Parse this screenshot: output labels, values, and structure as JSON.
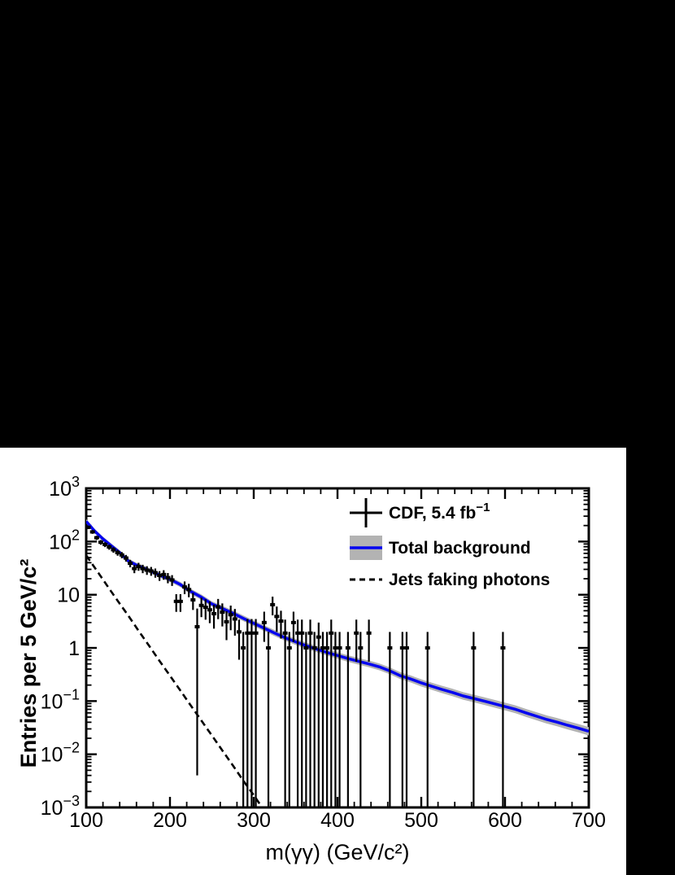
{
  "chart_data": {
    "type": "scatter",
    "title": "",
    "xlabel": "m(γγ) (GeV/c²)",
    "ylabel": "Entries per 5 GeV/c²",
    "xlim": [
      100,
      700
    ],
    "ylim": [
      0.001,
      1000
    ],
    "y_scale": "log",
    "grid": false,
    "legend_position": "top-right-inside",
    "x_major_ticks": [
      100,
      200,
      300,
      400,
      500,
      600,
      700
    ],
    "x_tick_labels": [
      "100",
      "200",
      "300",
      "400",
      "500",
      "600",
      "700"
    ],
    "x_minor_step": 20,
    "y_ticks": [
      {
        "value": 1000,
        "base": "10",
        "exp": "3"
      },
      {
        "value": 100,
        "base": "10",
        "exp": "2"
      },
      {
        "value": 10,
        "base": "10",
        "exp": ""
      },
      {
        "value": 1,
        "base": "1",
        "exp": ""
      },
      {
        "value": 0.1,
        "base": "10",
        "exp": "−1"
      },
      {
        "value": 0.01,
        "base": "10",
        "exp": "−2"
      },
      {
        "value": 0.001,
        "base": "10",
        "exp": "−3"
      }
    ],
    "colors": {
      "data_points": "#000000",
      "background_line": "#0505f0",
      "uncertainty_band": "#b3b3b3",
      "jets_line": "#000000",
      "figure_background": "#ffffff",
      "page_background": "#000000"
    },
    "legend": [
      {
        "label": "CDF, 5.4 fb",
        "sup": "−1",
        "marker": "data-point-cross"
      },
      {
        "label": "Total background",
        "sup": "",
        "marker": "blue-line-on-gray-band"
      },
      {
        "label": "Jets faking photons",
        "sup": "",
        "marker": "black-dashed-line"
      }
    ],
    "series": [
      {
        "name": "CDF data",
        "type": "points_with_errors",
        "note": "entries per 5 GeV/c^2 bin; [mass, value, err_low_abs, err_high_abs]; missing err => sqrt(value); err_low 0.001 => bar to bottom of frame",
        "points": [
          [
            102.5,
            185
          ],
          [
            107.5,
            152
          ],
          [
            112.5,
            118
          ],
          [
            117.5,
            97
          ],
          [
            122.5,
            88
          ],
          [
            127.5,
            79
          ],
          [
            132.5,
            70
          ],
          [
            137.5,
            62
          ],
          [
            142.5,
            56
          ],
          [
            147.5,
            49
          ],
          [
            152.5,
            39
          ],
          [
            157.5,
            31
          ],
          [
            162.5,
            34
          ],
          [
            167.5,
            31
          ],
          [
            172.5,
            29
          ],
          [
            177.5,
            28
          ],
          [
            182.5,
            26
          ],
          [
            187.5,
            23
          ],
          [
            192.5,
            24
          ],
          [
            197.5,
            21
          ],
          [
            202.5,
            19
          ],
          [
            207.5,
            7.5
          ],
          [
            212.5,
            7.5
          ],
          [
            217.5,
            14
          ],
          [
            222.5,
            12.5
          ],
          [
            227.5,
            8
          ],
          [
            232.5,
            2.5,
            0.004,
            5.5
          ],
          [
            237.5,
            6.3
          ],
          [
            242.5,
            5.8
          ],
          [
            247.5,
            5.2
          ],
          [
            252.5,
            4.4
          ],
          [
            257.5,
            5.9
          ],
          [
            262.5,
            4.7
          ],
          [
            267.5,
            3.1,
            1.4,
            4.9
          ],
          [
            272.5,
            4.2
          ],
          [
            277.5,
            3.5,
            1.7,
            5.4
          ],
          [
            282.5,
            2.0,
            0.6,
            3.4
          ],
          [
            287.5,
            1.0,
            0.001,
            2.0
          ],
          [
            292.5,
            1.9,
            0.001,
            3.5
          ],
          [
            297.5,
            1.9,
            0.001,
            3.5
          ],
          [
            302.5,
            1.9,
            0.001,
            3.5
          ],
          [
            312.5,
            3.0,
            1.3,
            4.8
          ],
          [
            317.5,
            1.0,
            0.001,
            2.0
          ],
          [
            322.5,
            6.5,
            4.1,
            9.2
          ],
          [
            327.5,
            3.9,
            2.0,
            6.0
          ],
          [
            332.5,
            3.2,
            1.5,
            5.0
          ],
          [
            337.5,
            1.9,
            0.001,
            3.4
          ],
          [
            342.5,
            1.0,
            0.001,
            2.0
          ],
          [
            347.5,
            3.0,
            1.3,
            4.8
          ],
          [
            352.5,
            1.9,
            0.001,
            3.4
          ],
          [
            357.5,
            1.9,
            0.001,
            3.4
          ],
          [
            362.5,
            1.0,
            0.001,
            2.0
          ],
          [
            367.5,
            1.9,
            0.001,
            3.4
          ],
          [
            372.5,
            1.0,
            0.001,
            2.0
          ],
          [
            377.5,
            1.6,
            0.001,
            3.0
          ],
          [
            382.5,
            1.0,
            0.001,
            2.0
          ],
          [
            387.5,
            1.0,
            0.001,
            2.0
          ],
          [
            392.5,
            1.9,
            0.001,
            3.4
          ],
          [
            397.5,
            1.0,
            0.001,
            2.0
          ],
          [
            402.5,
            1.0,
            0.001,
            2.0
          ],
          [
            412.5,
            1.0,
            0.001,
            2.0
          ],
          [
            422.5,
            1.9,
            0.55,
            3.4
          ],
          [
            427.5,
            1.0,
            0.001,
            2.0
          ],
          [
            437.5,
            1.9,
            0.55,
            3.4
          ],
          [
            462.5,
            1.0,
            0.001,
            2.0
          ],
          [
            477.5,
            1.0,
            0.001,
            2.0
          ],
          [
            482.5,
            1.0,
            0.001,
            2.0
          ],
          [
            507.5,
            1.0,
            0.001,
            2.0
          ],
          [
            562.5,
            1.0,
            0.001,
            2.0
          ],
          [
            597.5,
            1.0,
            0.001,
            2.0
          ]
        ]
      },
      {
        "name": "Total background",
        "type": "line_with_band",
        "band_fraction_start": 0.1,
        "band_fraction_end": 0.2,
        "points": [
          [
            100,
            240
          ],
          [
            110,
            158
          ],
          [
            120,
            112
          ],
          [
            130,
            83
          ],
          [
            140,
            62
          ],
          [
            150,
            43.5
          ],
          [
            160,
            36
          ],
          [
            170,
            31
          ],
          [
            180,
            26.5
          ],
          [
            190,
            22.5
          ],
          [
            200,
            19.5
          ],
          [
            212.5,
            15.5
          ],
          [
            225,
            11.5
          ],
          [
            237.5,
            9.0
          ],
          [
            250,
            6.7
          ],
          [
            262.5,
            5.5
          ],
          [
            275,
            4.5
          ],
          [
            287.5,
            3.6
          ],
          [
            300,
            2.9
          ],
          [
            312.5,
            2.35
          ],
          [
            325,
            1.9
          ],
          [
            337.5,
            1.55
          ],
          [
            350,
            1.3
          ],
          [
            362.5,
            1.1
          ],
          [
            375,
            0.95
          ],
          [
            387.5,
            0.82
          ],
          [
            400,
            0.72
          ],
          [
            412.5,
            0.63
          ],
          [
            425,
            0.56
          ],
          [
            437.5,
            0.5
          ],
          [
            450,
            0.44
          ],
          [
            462.5,
            0.37
          ],
          [
            475,
            0.3
          ],
          [
            487.5,
            0.26
          ],
          [
            500,
            0.22
          ],
          [
            512.5,
            0.19
          ],
          [
            525,
            0.165
          ],
          [
            537.5,
            0.145
          ],
          [
            550,
            0.125
          ],
          [
            562.5,
            0.112
          ],
          [
            575,
            0.1
          ],
          [
            587.5,
            0.089
          ],
          [
            600,
            0.079
          ],
          [
            612.5,
            0.07
          ],
          [
            625,
            0.06
          ],
          [
            637.5,
            0.052
          ],
          [
            650,
            0.045
          ],
          [
            662.5,
            0.04
          ],
          [
            675,
            0.035
          ],
          [
            687.5,
            0.031
          ],
          [
            700,
            0.027
          ]
        ]
      },
      {
        "name": "Jets faking photons",
        "type": "dashed_line",
        "points": [
          [
            100,
            55
          ],
          [
            110,
            32.6
          ],
          [
            120,
            19.3
          ],
          [
            130,
            11.4
          ],
          [
            140,
            6.8
          ],
          [
            150,
            4.1
          ],
          [
            162.5,
            2.1
          ],
          [
            175,
            1.1
          ],
          [
            187.5,
            0.57
          ],
          [
            200,
            0.3
          ],
          [
            212.5,
            0.157
          ],
          [
            225,
            0.082
          ],
          [
            237.5,
            0.043
          ],
          [
            250,
            0.0226
          ],
          [
            262.5,
            0.0118
          ],
          [
            275,
            0.0062
          ],
          [
            287.5,
            0.0032
          ],
          [
            300,
            0.0017
          ],
          [
            310,
            0.001
          ]
        ]
      }
    ]
  }
}
